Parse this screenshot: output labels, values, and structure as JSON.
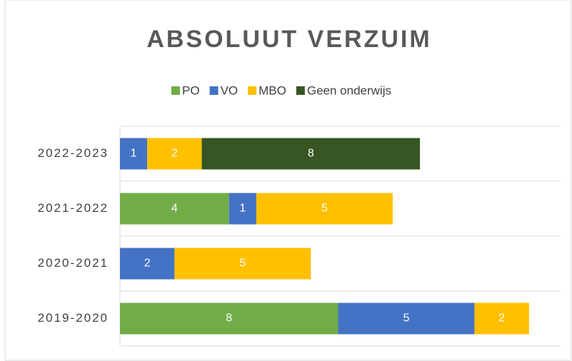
{
  "chart_data": {
    "type": "stacked-bar-horizontal",
    "title": "ABSOLUUT VERZUIM",
    "categories": [
      "2022-2023",
      "2021-2022",
      "2020-2021",
      "2019-2020"
    ],
    "series": [
      {
        "name": "PO",
        "color": "#70ad47",
        "values": [
          null,
          4,
          null,
          8
        ]
      },
      {
        "name": "VO",
        "color": "#4472c4",
        "values": [
          1,
          1,
          2,
          5
        ]
      },
      {
        "name": "MBO",
        "color": "#ffc000",
        "values": [
          2,
          5,
          5,
          2
        ]
      },
      {
        "name": "Geen onderwijs",
        "color": "#375623",
        "values": [
          8,
          null,
          null,
          null
        ]
      }
    ],
    "xlim": [
      0,
      16
    ],
    "legend": "top"
  }
}
